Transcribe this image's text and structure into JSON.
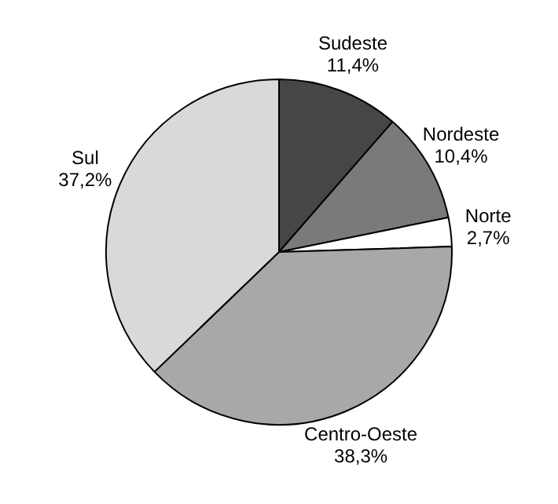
{
  "chart_data": {
    "type": "pie",
    "categories": [
      "Sudeste",
      "Nordeste",
      "Norte",
      "Centro-Oeste",
      "Sul"
    ],
    "values": [
      11.4,
      10.4,
      2.7,
      38.3,
      37.2
    ],
    "value_labels": [
      "11,4%",
      "10,4%",
      "2,7%",
      "38,3%",
      "37,2%"
    ],
    "colors": [
      "#464646",
      "#7a7a7a",
      "#ffffff",
      "#a8a8a8",
      "#d9d9d9"
    ],
    "legend": false
  }
}
